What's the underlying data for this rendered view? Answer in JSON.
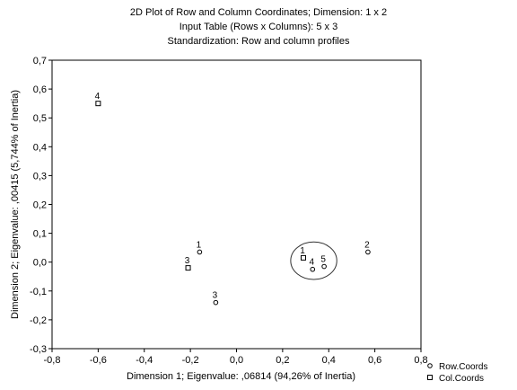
{
  "chart_data": {
    "type": "scatter",
    "title_lines": [
      "2D Plot of Row and Column Coordinates; Dimension:  1 x  2",
      "Input Table (Rows x Columns): 5 x 3",
      "Standardization: Row and column profiles"
    ],
    "xlabel": "Dimension 1; Eigenvalue: ,06814 (94,26% of Inertia)",
    "ylabel": "Dimension 2; Eigenvalue: ,00415 (5,744% of Inertia)",
    "xlim": [
      -0.8,
      0.8
    ],
    "ylim": [
      -0.3,
      0.7
    ],
    "x_ticks": [
      "-0,8",
      "-0,6",
      "-0,4",
      "-0,2",
      "0,0",
      "0,2",
      "0,4",
      "0,6",
      "0,8"
    ],
    "y_ticks": [
      "-0,3",
      "-0,2",
      "-0,1",
      "0,0",
      "0,1",
      "0,2",
      "0,3",
      "0,4",
      "0,5",
      "0,6",
      "0,7"
    ],
    "grid": false,
    "legend_position": "bottom-right outside",
    "series": [
      {
        "name": "Row.Coords",
        "marker": "circle",
        "points": [
          {
            "label": "1",
            "x": -0.16,
            "y": 0.035
          },
          {
            "label": "2",
            "x": 0.57,
            "y": 0.035
          },
          {
            "label": "3",
            "x": -0.09,
            "y": -0.14
          },
          {
            "label": "4",
            "x": 0.33,
            "y": -0.025
          },
          {
            "label": "5",
            "x": 0.38,
            "y": -0.015
          }
        ]
      },
      {
        "name": "Col.Coords",
        "marker": "square",
        "points": [
          {
            "label": "1",
            "x": 0.29,
            "y": 0.015
          },
          {
            "label": "3",
            "x": -0.21,
            "y": -0.02
          },
          {
            "label": "4",
            "x": -0.6,
            "y": 0.55
          }
        ]
      }
    ],
    "annotations": [
      {
        "type": "ellipse",
        "cx": 0.335,
        "cy": 0.005,
        "rx": 0.1,
        "ry": 0.065
      }
    ]
  }
}
